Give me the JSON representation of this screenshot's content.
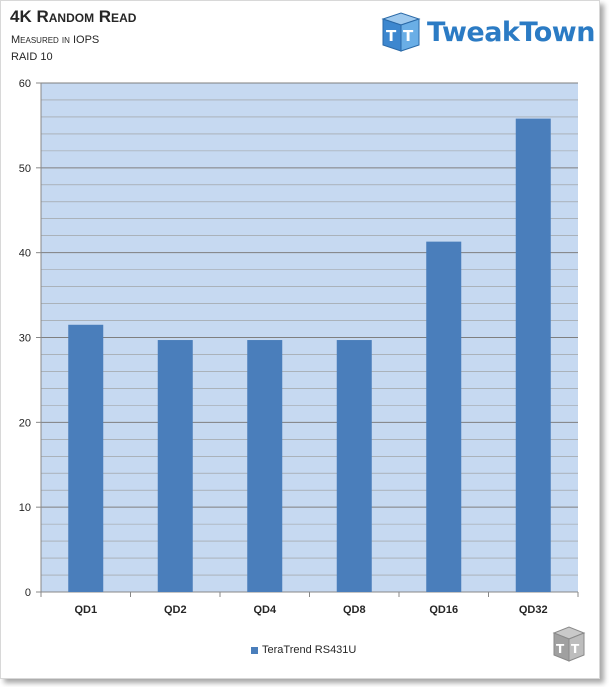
{
  "chart_data": {
    "type": "bar",
    "title": "4K Random Read",
    "subtitle": "Measured in IOPS",
    "subtitle2": "RAID 10",
    "categories": [
      "QD1",
      "QD2",
      "QD4",
      "QD8",
      "QD16",
      "QD32"
    ],
    "series": [
      {
        "name": "TeraTrend RS431U",
        "values": [
          31.5,
          29.7,
          29.7,
          29.7,
          41.3,
          55.8
        ],
        "color": "#4a7ebb"
      }
    ],
    "ylim": [
      0,
      60
    ],
    "yticks": [
      0,
      10,
      20,
      30,
      40,
      50,
      60
    ],
    "grid": true,
    "legend_position": "bottom",
    "plot_background": "#c6d9f1"
  },
  "branding": {
    "logo_text": "TweakTown",
    "logo_icon": "tt-cube-logo-icon",
    "corner_icon": "tt-cube-small-icon"
  }
}
